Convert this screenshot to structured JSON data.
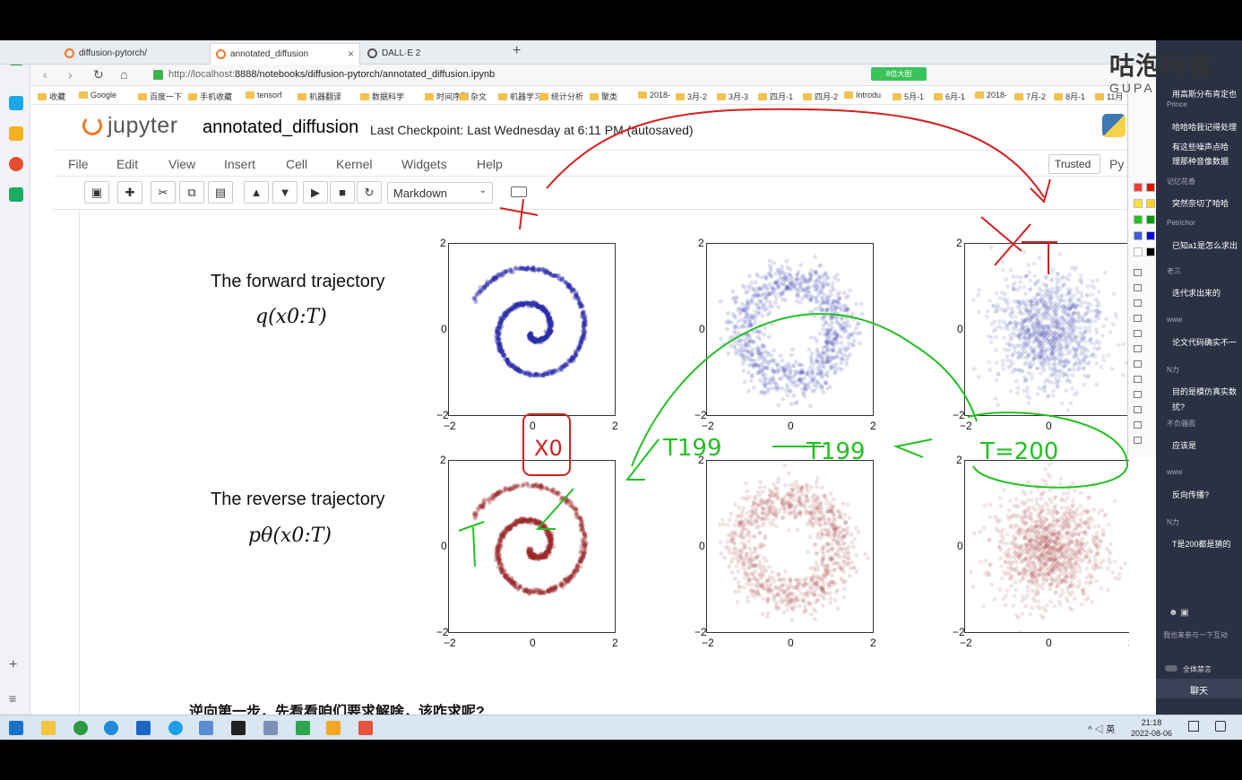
{
  "browser": {
    "tabs": [
      "diffusion-pytorch/",
      "annotated_diffusion",
      "DALL·E 2"
    ],
    "url_prefix": "http://localhost:",
    "url_rest": "8888/notebooks/diffusion-pytorch/annotated_diffusion.ipynb",
    "green_button": "8倍大图",
    "bookmarks": [
      "收藏",
      "Google",
      "百度一下",
      "手机收藏",
      "tensorf",
      "机器翻译",
      "数据科学",
      "时间序列",
      "杂文",
      "机器学习",
      "统计分析",
      "聚类",
      "2018-",
      "3月-2",
      "3月-3",
      "四月-1",
      "四月-2",
      "Introdu",
      "5月-1",
      "6月-1",
      "2018-",
      "7月-2",
      "8月-1",
      "11月"
    ]
  },
  "jupyter": {
    "logo": "jupyter",
    "notebook_name": "annotated_diffusion",
    "checkpoint": "Last Checkpoint: Last Wednesday at 6:11 PM (autosaved)",
    "menu": [
      "File",
      "Edit",
      "View",
      "Insert",
      "Cell",
      "Kernel",
      "Widgets",
      "Help"
    ],
    "trusted": "Trusted",
    "kernel": "Py",
    "cell_type": "Markdown"
  },
  "content": {
    "forward_label": "The forward trajectory",
    "forward_math": "q(x0:T)",
    "reverse_label": "The reverse trajectory",
    "reverse_math": "pθ(x0:T)",
    "tick_neg": "−2",
    "tick_zero": "0",
    "tick_pos": "2",
    "bottom_text": "逆向第一步，先看看咱们要求解啥，该咋求呢?"
  },
  "annotations": {
    "x0": "X0",
    "t199a": "T199",
    "t199b": "T199",
    "t200": "T=200"
  },
  "brand": {
    "name": "咕泡科技",
    "sub": "GUPA"
  },
  "chat": {
    "header": "用高斯分布肯定也",
    "messages": [
      {
        "user": "Prince",
        "text": "哈哈哈我记得处理"
      },
      {
        "user": "",
        "text": "有这些噪声点哈"
      },
      {
        "user": "",
        "text": "理那种音像数据"
      },
      {
        "user": "记忆花香",
        "text": "突然奈切了哈哈"
      },
      {
        "user": "Petrichor",
        "text": "已知a1是怎么求出"
      },
      {
        "user": "老三",
        "text": "迭代求出来的"
      },
      {
        "user": "www",
        "text": "论文代码确实不一"
      },
      {
        "user": "N力",
        "text": "目的是模仿真实数"
      },
      {
        "user": "",
        "text": "扰?"
      },
      {
        "user": "不负骚雨",
        "text": "应该是"
      },
      {
        "user": "www",
        "text": "反向传播?"
      },
      {
        "user": "N力",
        "text": "T是200都是猜的"
      }
    ],
    "input_placeholder": "我也来参与一下互动",
    "mute_all": "全体禁言",
    "chat_tab": "聊天"
  },
  "taskbar": {
    "time": "21:18",
    "date": "2022-08-06",
    "ime": "英"
  },
  "colors": {
    "accent": "#f37726",
    "blue_points": "#2b2ea8",
    "red_points": "#9c2a2a",
    "annotation_red": "#d32020",
    "annotation_green": "#22c022"
  }
}
